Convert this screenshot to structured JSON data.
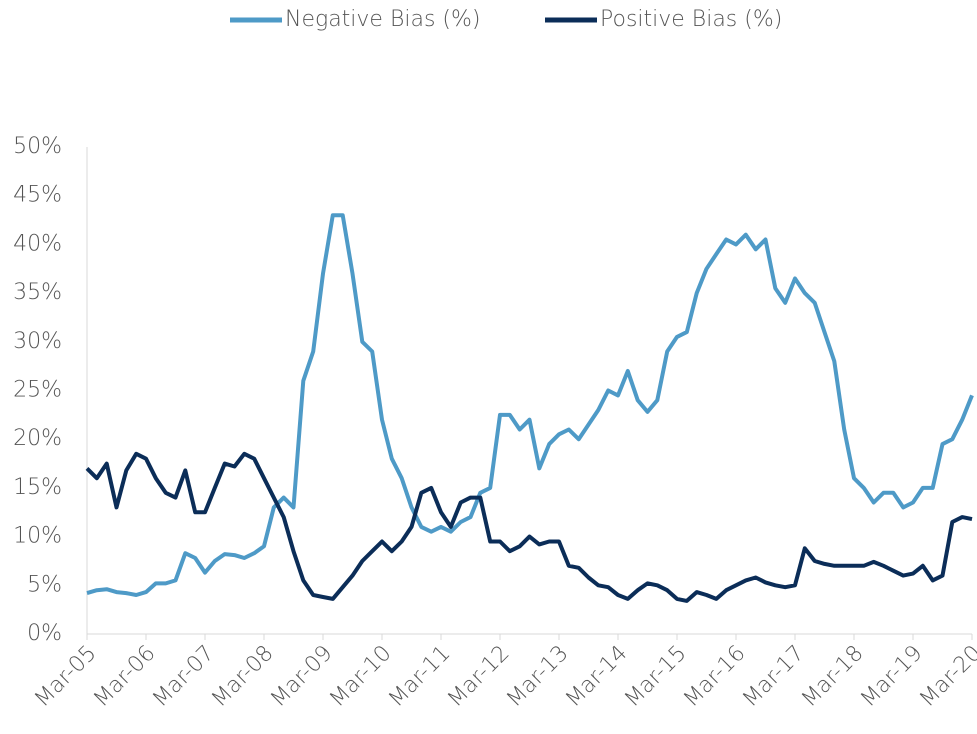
{
  "chart_data": {
    "type": "line",
    "categories": [
      "Mar-05",
      null,
      null,
      null,
      null,
      null,
      "Mar-06",
      null,
      null,
      null,
      null,
      null,
      "Mar-07",
      null,
      null,
      null,
      null,
      null,
      "Mar-08",
      null,
      null,
      null,
      null,
      null,
      "Mar-09",
      null,
      null,
      null,
      null,
      null,
      "Mar-10",
      null,
      null,
      null,
      null,
      null,
      "Mar-11",
      null,
      null,
      null,
      null,
      null,
      "Mar-12",
      null,
      null,
      null,
      null,
      null,
      "Mar-13",
      null,
      null,
      null,
      null,
      null,
      "Mar-14",
      null,
      null,
      null,
      null,
      null,
      "Mar-15",
      null,
      null,
      null,
      null,
      null,
      "Mar-16",
      null,
      null,
      null,
      null,
      null,
      "Mar-17",
      null,
      null,
      null,
      null,
      null,
      "Mar-18",
      null,
      null,
      null,
      null,
      null,
      "Mar-19",
      null,
      null,
      null,
      null,
      null,
      "Mar-20"
    ],
    "series": [
      {
        "name": "Negative Bias (%)",
        "color": "#4e9ac7",
        "values": [
          4.2,
          4.5,
          4.6,
          4.3,
          4.2,
          4.0,
          4.3,
          5.2,
          5.2,
          5.5,
          8.3,
          7.8,
          6.3,
          7.5,
          8.2,
          8.1,
          7.8,
          8.3,
          9.0,
          13.0,
          14.0,
          13.0,
          26,
          29,
          37,
          43,
          43,
          37,
          30,
          29,
          22,
          18,
          16,
          13,
          11,
          10.5,
          11,
          10.5,
          11.5,
          12,
          14.5,
          15,
          22.5,
          22.5,
          21,
          22,
          17,
          19.5,
          20.5,
          21,
          20,
          21.5,
          23,
          25,
          24.5,
          27,
          24,
          22.8,
          24,
          29,
          30.5,
          31,
          35,
          37.5,
          39,
          40.5,
          40,
          41,
          39.5,
          40.5,
          35.5,
          34,
          36.5,
          35,
          34,
          31,
          28,
          21,
          16,
          15,
          13.5,
          14.5,
          14.5,
          13,
          13.5,
          15,
          15,
          19.5,
          20,
          22,
          24.5
        ]
      },
      {
        "name": "Positive Bias (%)",
        "color": "#0b2d58",
        "values": [
          17,
          16,
          17.5,
          13,
          16.8,
          18.5,
          18,
          16,
          14.5,
          14,
          16.8,
          12.5,
          12.5,
          15,
          17.5,
          17.2,
          18.5,
          18,
          16,
          14,
          12,
          8.5,
          5.5,
          4,
          3.8,
          3.6,
          4.8,
          6,
          7.5,
          8.5,
          9.5,
          8.5,
          9.5,
          11,
          14.5,
          15,
          12.5,
          11,
          13.5,
          14,
          14,
          9.5,
          9.5,
          8.5,
          9,
          10,
          9.2,
          9.5,
          9.5,
          7,
          6.8,
          5.8,
          5,
          4.8,
          4,
          3.6,
          4.5,
          5.2,
          5,
          4.5,
          3.6,
          3.4,
          4.3,
          4,
          3.6,
          4.5,
          5,
          5.5,
          5.8,
          5.3,
          5,
          4.8,
          5,
          8.8,
          7.5,
          7.2,
          7,
          7,
          7,
          7,
          7.4,
          7,
          6.5,
          6,
          6.2,
          7,
          5.5,
          6,
          11.5,
          12,
          11.8
        ]
      }
    ],
    "ylim": [
      0,
      50
    ],
    "yticks": [
      {
        "value": 0,
        "label": "0%"
      },
      {
        "value": 5,
        "label": "5%"
      },
      {
        "value": 10,
        "label": "10%"
      },
      {
        "value": 15,
        "label": "15%"
      },
      {
        "value": 20,
        "label": "20%"
      },
      {
        "value": 25,
        "label": "25%"
      },
      {
        "value": 30,
        "label": "30%"
      },
      {
        "value": 35,
        "label": "35%"
      },
      {
        "value": 40,
        "label": "40%"
      },
      {
        "value": 45,
        "label": "45%"
      },
      {
        "value": 50,
        "label": "50%"
      }
    ],
    "grid": false,
    "legend": "top"
  }
}
